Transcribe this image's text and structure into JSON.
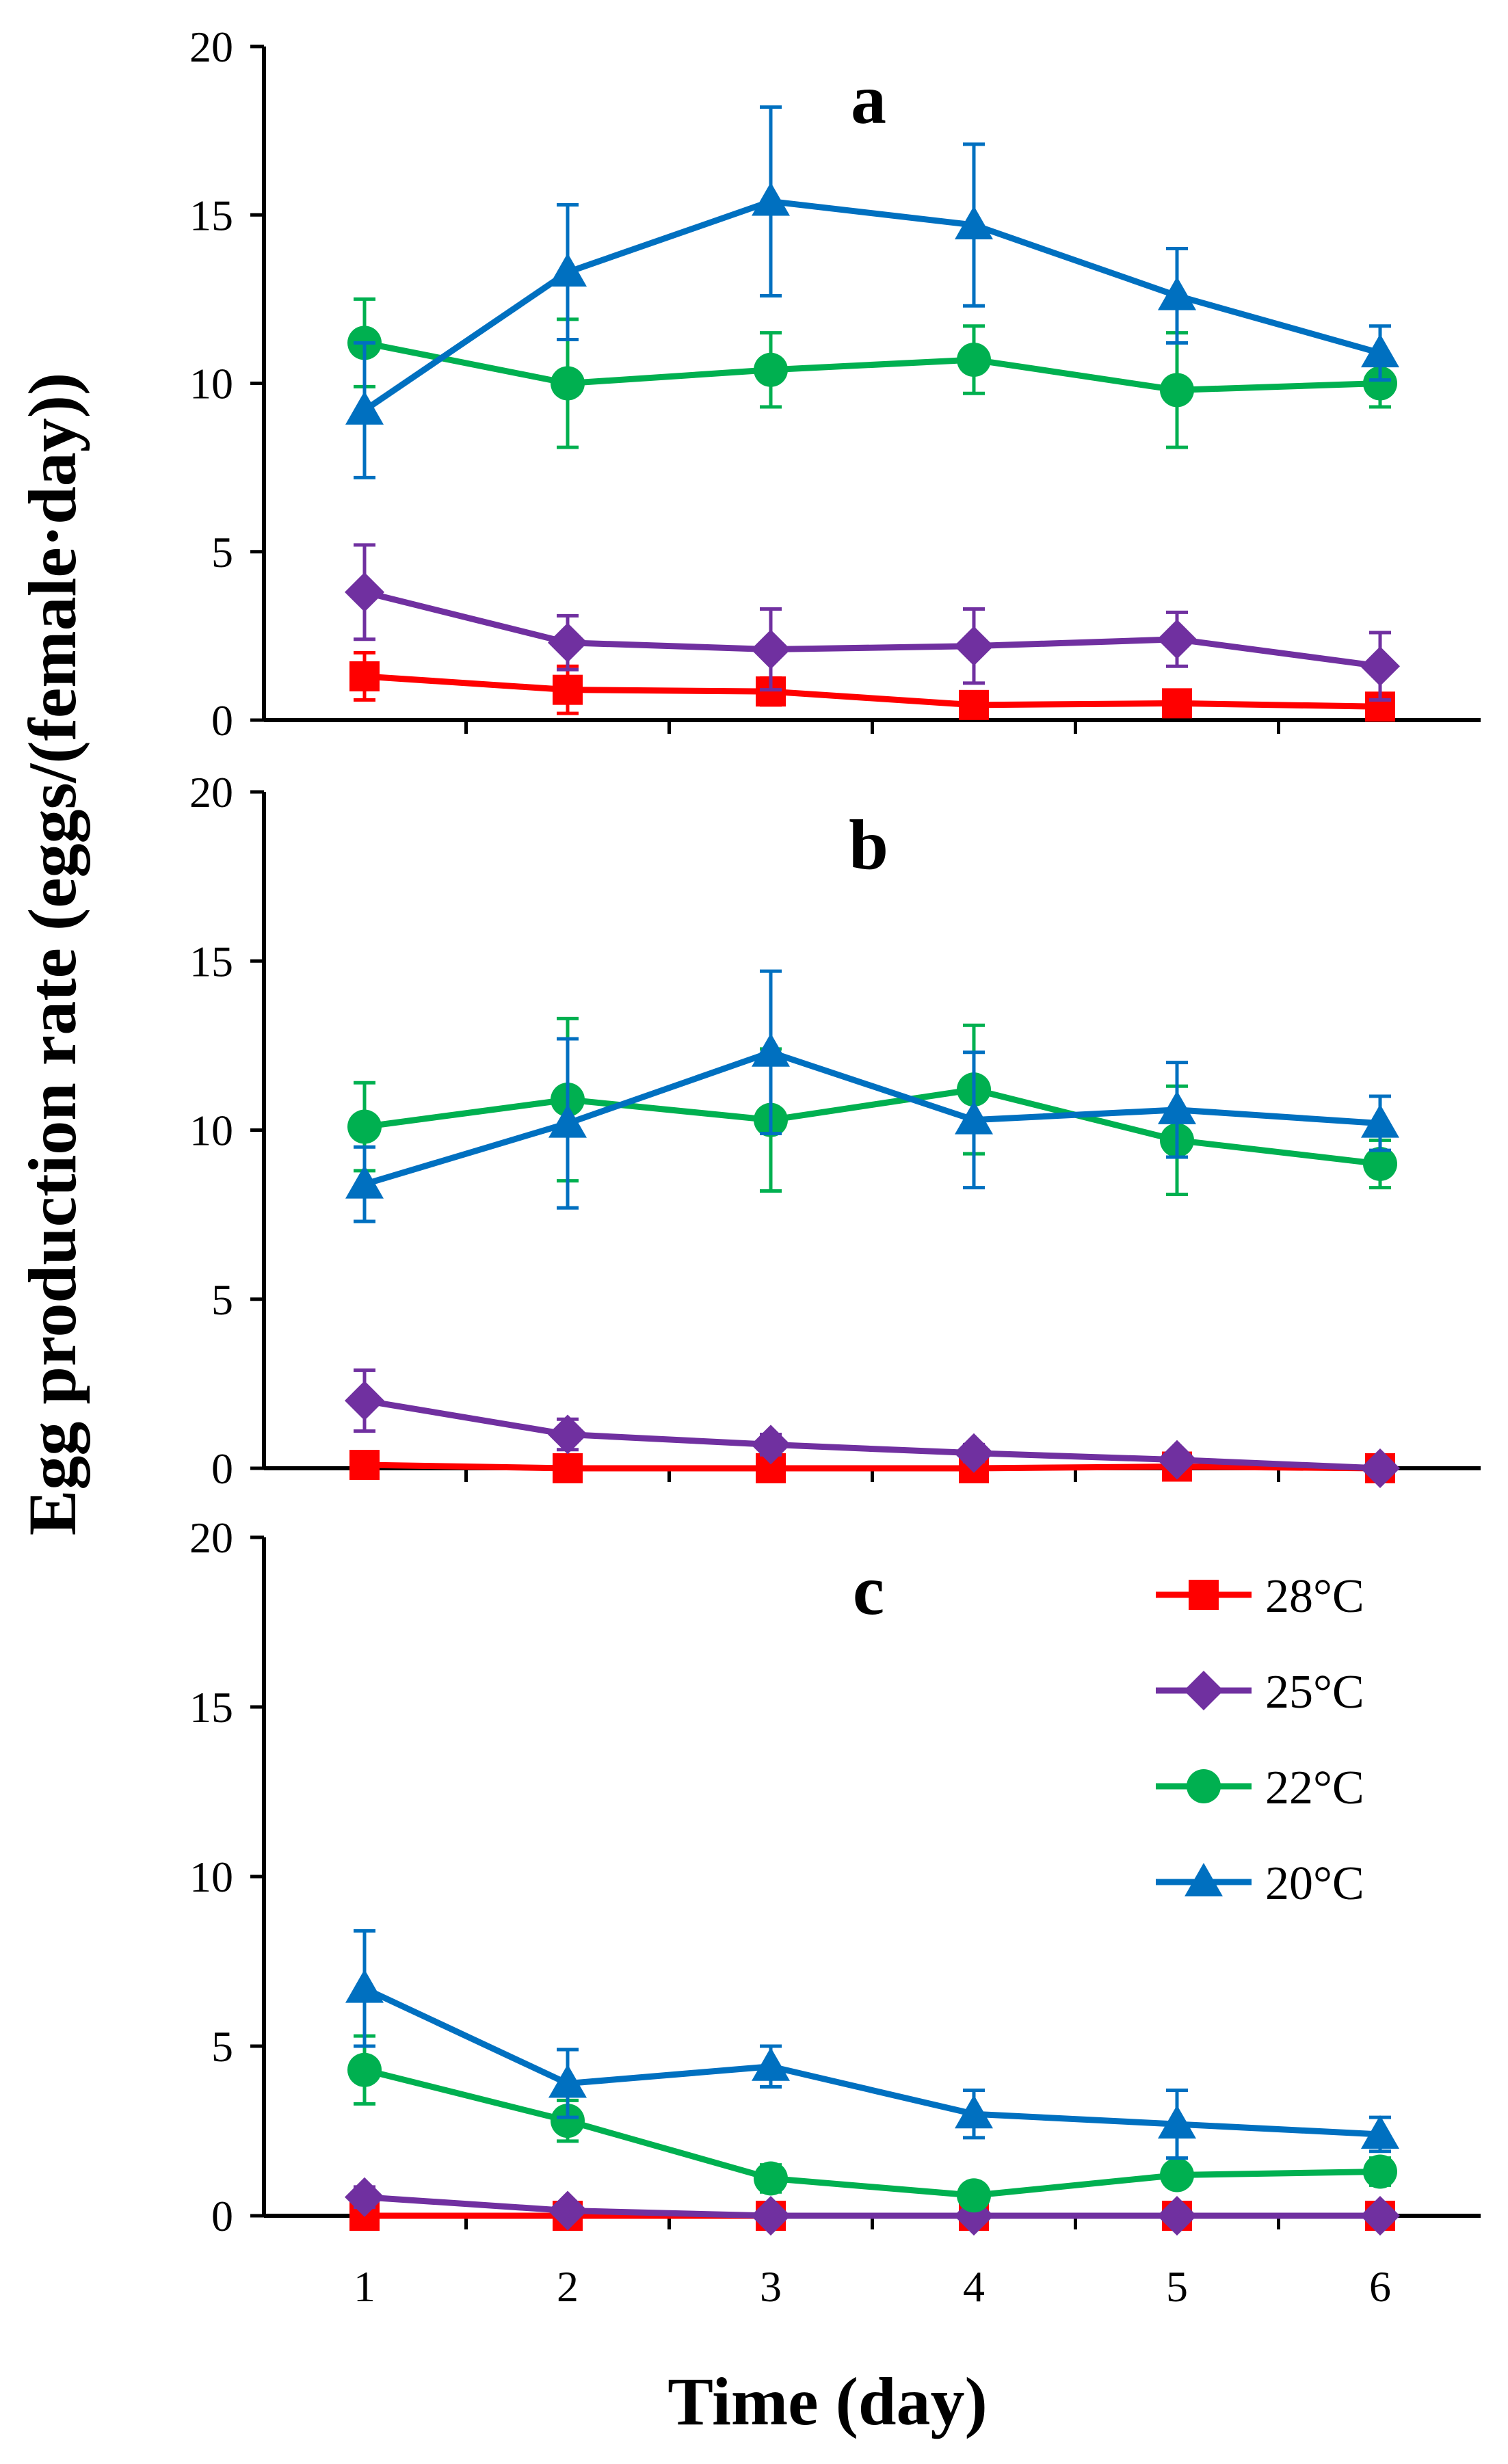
{
  "chart_data": {
    "type": "line",
    "title": "",
    "ylabel": "Egg production rate  (eggs/(female·day))",
    "xlabel": "Time (day)",
    "x": [
      1,
      2,
      3,
      4,
      5,
      6
    ],
    "x_tick_labels": [
      "1",
      "2",
      "3",
      "4",
      "5",
      "6"
    ],
    "ylim": [
      0,
      20
    ],
    "y_tick_labels": [
      "0",
      "5",
      "10",
      "15",
      "20"
    ],
    "series_styles": [
      {
        "name": "28°C",
        "color": "#ff0000",
        "marker": "square"
      },
      {
        "name": "25°C",
        "color": "#7030a0",
        "marker": "diamond"
      },
      {
        "name": "22°C",
        "color": "#00b050",
        "marker": "circle"
      },
      {
        "name": "20°C",
        "color": "#0070c0",
        "marker": "triangle"
      }
    ],
    "legend": {
      "position": "upper-right of panel c",
      "entries": [
        "28°C",
        "25°C",
        "22°C",
        "20°C"
      ]
    },
    "panels": [
      {
        "label": "a",
        "series": [
          {
            "name": "28°C",
            "values": [
              1.3,
              0.9,
              0.85,
              0.45,
              0.5,
              0.4
            ],
            "errors": [
              0.7,
              0.7,
              0.4,
              0.3,
              0.2,
              0.2
            ]
          },
          {
            "name": "25°C",
            "values": [
              3.8,
              2.3,
              2.1,
              2.2,
              2.4,
              1.6
            ],
            "errors": [
              1.4,
              0.8,
              1.2,
              1.1,
              0.8,
              1.0
            ]
          },
          {
            "name": "22°C",
            "values": [
              11.2,
              10.0,
              10.4,
              10.7,
              9.8,
              10.0
            ],
            "errors": [
              1.3,
              1.9,
              1.1,
              1.0,
              1.7,
              0.7
            ]
          },
          {
            "name": "20°C",
            "values": [
              9.2,
              13.3,
              15.4,
              14.7,
              12.6,
              10.9
            ],
            "errors": [
              2.0,
              2.0,
              2.8,
              2.4,
              1.4,
              0.8
            ]
          }
        ]
      },
      {
        "label": "b",
        "series": [
          {
            "name": "28°C",
            "values": [
              0.1,
              0.0,
              0.0,
              0.0,
              0.05,
              0.0
            ],
            "errors": [
              0.1,
              0.05,
              0.05,
              0.05,
              0.05,
              0.0
            ]
          },
          {
            "name": "25°C",
            "values": [
              2.0,
              1.0,
              0.7,
              0.45,
              0.25,
              0.0
            ],
            "errors": [
              0.9,
              0.45,
              0.3,
              0.25,
              0.2,
              0.0
            ]
          },
          {
            "name": "22°C",
            "values": [
              10.1,
              10.9,
              10.3,
              11.2,
              9.7,
              9.0
            ],
            "errors": [
              1.3,
              2.4,
              2.1,
              1.9,
              1.6,
              0.7
            ]
          },
          {
            "name": "20°C",
            "values": [
              8.4,
              10.2,
              12.3,
              10.3,
              10.6,
              10.2
            ],
            "errors": [
              1.1,
              2.5,
              2.4,
              2.0,
              1.4,
              0.8
            ]
          }
        ]
      },
      {
        "label": "c",
        "series": [
          {
            "name": "28°C",
            "values": [
              0.0,
              0.0,
              0.0,
              0.0,
              0.0,
              0.0
            ],
            "errors": [
              0.0,
              0.0,
              0.0,
              0.0,
              0.0,
              0.0
            ]
          },
          {
            "name": "25°C",
            "values": [
              0.55,
              0.15,
              0.0,
              0.0,
              0.0,
              0.0
            ],
            "errors": [
              0.3,
              0.1,
              0.0,
              0.0,
              0.0,
              0.0
            ]
          },
          {
            "name": "22°C",
            "values": [
              4.3,
              2.8,
              1.1,
              0.6,
              1.2,
              1.3
            ],
            "errors": [
              1.0,
              0.6,
              0.4,
              0.3,
              0.3,
              0.4
            ]
          },
          {
            "name": "20°C",
            "values": [
              6.7,
              3.9,
              4.4,
              3.0,
              2.7,
              2.4
            ],
            "errors": [
              1.7,
              1.0,
              0.6,
              0.7,
              1.0,
              0.5
            ]
          }
        ]
      }
    ]
  }
}
